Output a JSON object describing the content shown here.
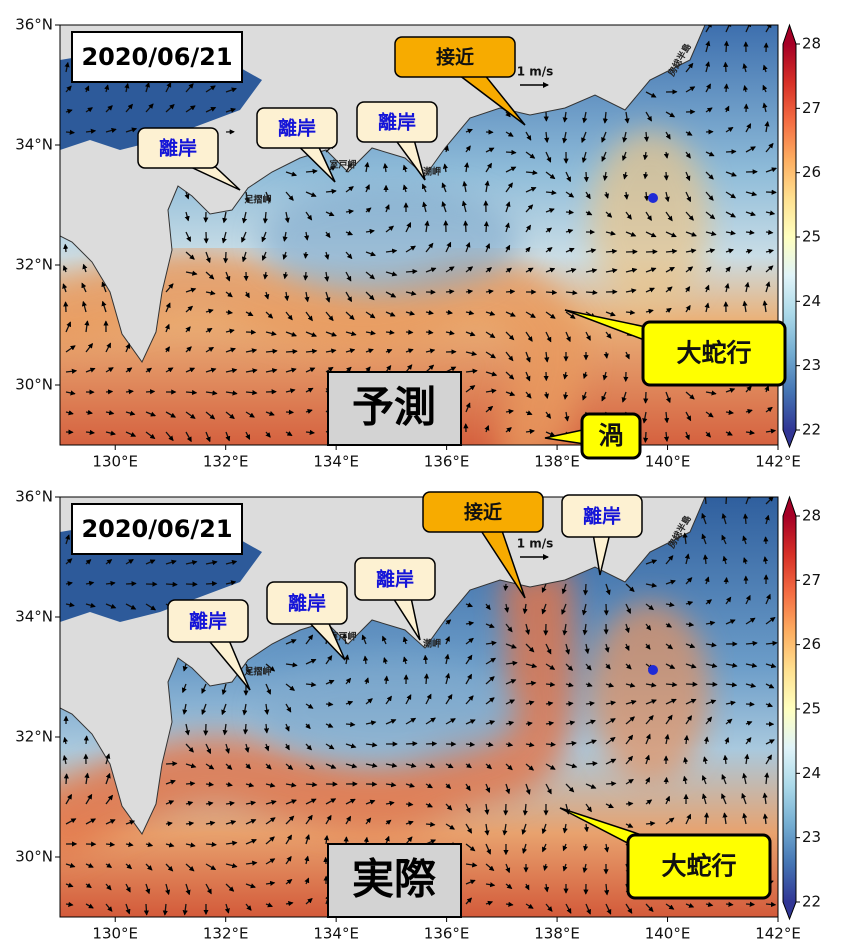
{
  "map": {
    "lon_range": [
      129,
      142
    ],
    "lat_range": [
      29,
      36
    ],
    "lon_ticks": [
      {
        "value": 130,
        "label": "130°E"
      },
      {
        "value": 132,
        "label": "132°E"
      },
      {
        "value": 134,
        "label": "134°E"
      },
      {
        "value": 136,
        "label": "136°E"
      },
      {
        "value": 138,
        "label": "138°E"
      },
      {
        "value": 140,
        "label": "140°E"
      },
      {
        "value": 142,
        "label": "142°E"
      }
    ],
    "lat_ticks": [
      {
        "value": 30,
        "label": "30°N"
      },
      {
        "value": 32,
        "label": "32°N"
      },
      {
        "value": 34,
        "label": "34°N"
      },
      {
        "value": 36,
        "label": "36°N"
      }
    ],
    "colorbar": {
      "range": [
        22,
        28
      ],
      "ticks": [
        22,
        23,
        24,
        25,
        26,
        27,
        28
      ]
    }
  },
  "panels": [
    {
      "date": "2020/06/21",
      "title": "予測",
      "scale_label": "1 m/s",
      "place_names": [
        "足摺岬",
        "室戸岬",
        "潮岬",
        "房総半島"
      ],
      "callouts": [
        "接近",
        "離岸",
        "離岸",
        "離岸",
        "大蛇行",
        "渦"
      ]
    },
    {
      "date": "2020/06/21",
      "title": "実際",
      "scale_label": "1 m/s",
      "place_names": [
        "足摺岬",
        "室戸岬",
        "潮岬",
        "房総半島"
      ],
      "callouts": [
        "接近",
        "離岸",
        "離岸",
        "離岸",
        "離岸",
        "大蛇行"
      ]
    }
  ]
}
